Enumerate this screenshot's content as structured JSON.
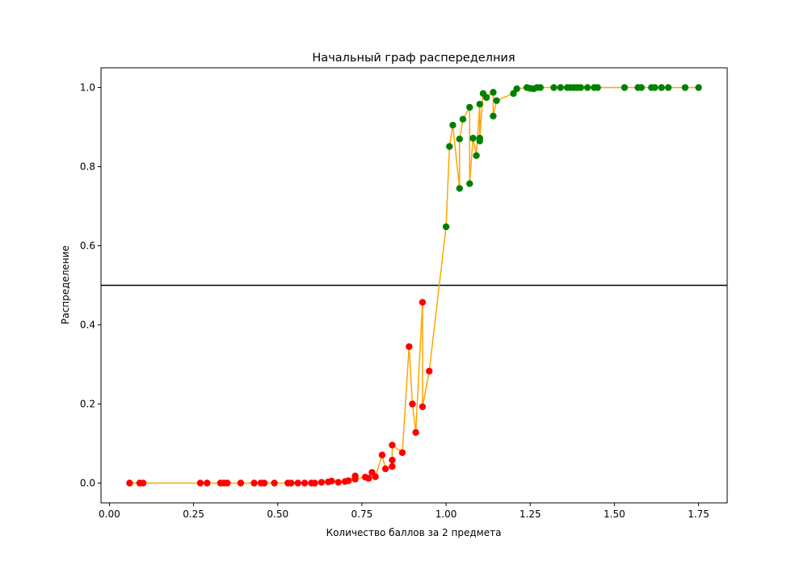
{
  "chart_data": {
    "type": "scatter",
    "title": "Начальный граф распеределния",
    "xlabel": "Количество баллов за 2 предмета",
    "ylabel": "Распределение",
    "xlim": [
      -0.025,
      1.835
    ],
    "ylim": [
      -0.05,
      1.05
    ],
    "xticks": [
      "0.00",
      "0.25",
      "0.50",
      "0.75",
      "1.00",
      "1.25",
      "1.50",
      "1.75"
    ],
    "yticks": [
      "0.0",
      "0.2",
      "0.4",
      "0.6",
      "0.8",
      "1.0"
    ],
    "grid": false,
    "threshold": 0.5,
    "colors": {
      "below": "#ff0000",
      "above": "#008000",
      "line": "#ffa500",
      "threshold": "#000000"
    },
    "series": [
      {
        "x": [
          0.06,
          0.09,
          0.1,
          0.27,
          0.29,
          0.33,
          0.34,
          0.35,
          0.39,
          0.43,
          0.45,
          0.46,
          0.49,
          0.53,
          0.54,
          0.56,
          0.58,
          0.6,
          0.61,
          0.63,
          0.65,
          0.66,
          0.68,
          0.7,
          0.71,
          0.73,
          0.73,
          0.76,
          0.77,
          0.78,
          0.79,
          0.81,
          0.82,
          0.84,
          0.84,
          0.84,
          0.87,
          0.89,
          0.9,
          0.91,
          0.93,
          0.93,
          0.95,
          1.0,
          1.01,
          1.02,
          1.04,
          1.04,
          1.05,
          1.07,
          1.07,
          1.08,
          1.09,
          1.1,
          1.1,
          1.1,
          1.11,
          1.12,
          1.14,
          1.14,
          1.15,
          1.2,
          1.21,
          1.24,
          1.25,
          1.26,
          1.27,
          1.28,
          1.32,
          1.34,
          1.36,
          1.37,
          1.38,
          1.39,
          1.4,
          1.42,
          1.44,
          1.45,
          1.53,
          1.57,
          1.58,
          1.61,
          1.62,
          1.64,
          1.66,
          1.71,
          1.75
        ],
        "y": [
          0.0,
          0.0,
          0.0,
          0.0,
          0.0,
          0.0,
          0.0,
          0.0,
          0.0,
          0.0,
          0.0,
          0.0,
          0.0,
          0.0,
          0.0,
          0.0,
          0.0,
          0.0,
          0.0,
          0.002,
          0.003,
          0.005,
          0.002,
          0.004,
          0.006,
          0.018,
          0.01,
          0.015,
          0.012,
          0.027,
          0.016,
          0.071,
          0.036,
          0.042,
          0.058,
          0.096,
          0.077,
          0.345,
          0.2,
          0.128,
          0.457,
          0.193,
          0.283,
          0.648,
          0.851,
          0.905,
          0.745,
          0.87,
          0.92,
          0.95,
          0.757,
          0.872,
          0.828,
          0.958,
          0.865,
          0.872,
          0.985,
          0.975,
          0.988,
          0.928,
          0.967,
          0.985,
          0.997,
          1.0,
          0.998,
          0.997,
          1.0,
          1.0,
          1.0,
          1.0,
          1.0,
          1.0,
          1.0,
          1.0,
          1.0,
          1.0,
          1.0,
          1.0,
          1.0,
          1.0,
          1.0,
          1.0,
          1.0,
          1.0,
          1.0,
          1.0,
          1.0
        ]
      }
    ]
  }
}
